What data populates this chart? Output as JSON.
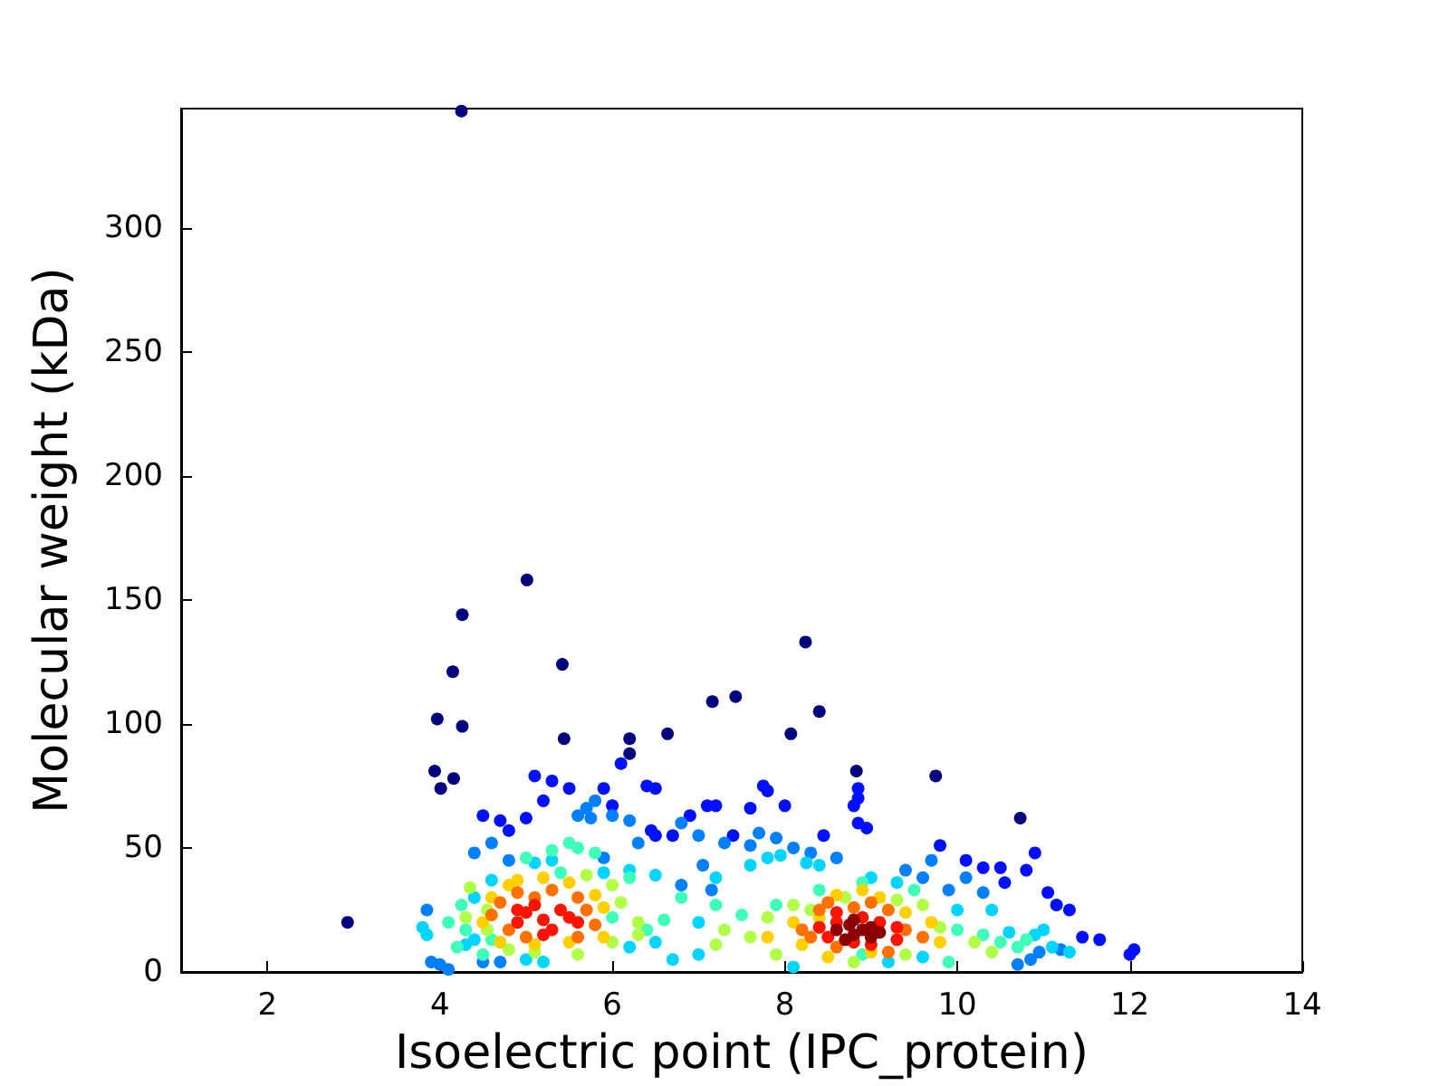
{
  "chart_data": {
    "type": "scatter",
    "xlabel": "Isoelectric point (IPC_protein)",
    "ylabel": "Molecular weight (kDa)",
    "xlim": [
      1,
      14
    ],
    "xticks": [
      2,
      4,
      6,
      8,
      10,
      12,
      14
    ],
    "ylim": [
      0,
      348
    ],
    "yticks": [
      0,
      50,
      100,
      150,
      200,
      250,
      300
    ],
    "grid": false,
    "marker": "circle",
    "series": [
      {
        "color": "#00007f",
        "x": [
          4.25,
          2.93,
          5.01,
          4.26,
          4.15,
          3.97,
          4.26,
          5.42,
          3.94,
          4.16,
          4.01,
          5.44,
          6.2,
          6.2,
          8.24,
          7.16,
          7.43,
          8.4,
          6.64,
          8.07,
          9.75,
          10.73,
          8.83
        ],
        "values": [
          347,
          20,
          158,
          144,
          121,
          102,
          99,
          124,
          81,
          78,
          74,
          94,
          94,
          88,
          133,
          109,
          111,
          105,
          96,
          96,
          79,
          62,
          81
        ]
      },
      {
        "color": "#0010ff",
        "x": [
          4.5,
          4.7,
          5.0,
          5.2,
          5.3,
          5.5,
          4.8,
          5.1,
          5.9,
          6.0,
          6.4,
          6.5,
          6.1,
          6.9,
          6.45,
          7.1,
          7.2,
          7.6,
          7.75,
          7.8,
          8.0,
          8.45,
          8.8,
          8.85,
          8.95,
          9.8,
          10.1,
          10.3,
          10.5,
          10.55,
          10.8,
          11.05,
          11.15,
          11.3,
          11.45,
          12.05,
          12.0,
          11.65,
          10.9,
          7.4,
          6.5,
          6.7,
          8.85,
          8.85
        ],
        "values": [
          63,
          61,
          62,
          69,
          77,
          74,
          57,
          79,
          74,
          67,
          75,
          74,
          84,
          63,
          57,
          67,
          67,
          66,
          75,
          73,
          67,
          55,
          67,
          60,
          58,
          51,
          45,
          42,
          42,
          36,
          41,
          32,
          27,
          25,
          14,
          9,
          7,
          13,
          48,
          55,
          55,
          55,
          74,
          70
        ]
      },
      {
        "color": "#0080ff",
        "x": [
          4.6,
          4.4,
          4.8,
          5.6,
          5.7,
          5.8,
          5.75,
          6.0,
          6.2,
          5.9,
          6.3,
          6.8,
          7.0,
          7.3,
          7.6,
          7.7,
          7.9,
          8.1,
          8.3,
          8.6,
          9.7,
          9.9,
          10.3,
          10.1,
          3.85,
          3.9,
          4.0,
          4.1,
          4.5,
          4.7,
          7.05,
          7.15,
          6.8,
          9.4,
          9.6,
          10.95,
          11.2,
          10.7,
          10.85
        ],
        "values": [
          52,
          48,
          45,
          63,
          66,
          69,
          62,
          63,
          61,
          46,
          52,
          60,
          55,
          52,
          51,
          56,
          54,
          50,
          48,
          46,
          45,
          33,
          32,
          38,
          25,
          4,
          3,
          1,
          4,
          4,
          43,
          33,
          35,
          41,
          38,
          8,
          9,
          3,
          5
        ]
      },
      {
        "color": "#00d4ff",
        "x": [
          3.85,
          3.8,
          4.4,
          4.6,
          5.1,
          5.3,
          6.2,
          5.9,
          7.6,
          7.8,
          7.95,
          8.25,
          8.4,
          6.5,
          7.2,
          9.0,
          9.3,
          10.0,
          10.4,
          10.6,
          10.9,
          11.1,
          11.3,
          7.0,
          6.5,
          6.2,
          5.2,
          5.0,
          4.3,
          4.4,
          7.0,
          9.2,
          8.1,
          9.6,
          6.7,
          11.0
        ],
        "values": [
          15,
          18,
          30,
          37,
          44,
          45,
          41,
          40,
          43,
          46,
          47,
          44,
          43,
          39,
          38,
          38,
          36,
          25,
          25,
          16,
          15,
          10,
          8,
          20,
          12,
          10,
          4,
          5,
          11,
          13,
          7,
          4,
          2,
          6,
          5,
          17
        ]
      },
      {
        "color": "#40ffb8",
        "x": [
          4.25,
          4.1,
          4.3,
          5.0,
          5.3,
          5.5,
          5.6,
          5.8,
          6.2,
          6.8,
          6.6,
          7.2,
          7.5,
          7.9,
          8.4,
          8.9,
          9.5,
          10.0,
          10.3,
          10.5,
          10.7,
          10.8,
          5.4,
          4.6,
          4.2,
          6.0,
          8.9,
          9.9,
          4.5,
          6.4
        ],
        "values": [
          27,
          20,
          17,
          46,
          49,
          52,
          50,
          48,
          38,
          30,
          21,
          27,
          23,
          27,
          33,
          36,
          33,
          17,
          15,
          12,
          10,
          13,
          40,
          13,
          10,
          22,
          7,
          4,
          7,
          17
        ]
      },
      {
        "color": "#b0ff48",
        "x": [
          4.3,
          4.55,
          4.35,
          4.8,
          5.1,
          5.7,
          6.0,
          6.1,
          6.3,
          6.0,
          7.3,
          7.6,
          7.8,
          8.1,
          8.3,
          8.7,
          9.3,
          9.6,
          9.8,
          10.2,
          10.4,
          7.9,
          8.8,
          9.4,
          5.6,
          4.55,
          6.3,
          7.2
        ],
        "values": [
          22,
          25,
          34,
          9,
          8,
          39,
          35,
          28,
          20,
          12,
          17,
          14,
          22,
          27,
          25,
          30,
          29,
          27,
          18,
          12,
          8,
          7,
          4,
          7,
          7,
          17,
          15,
          11
        ]
      },
      {
        "color": "#ffd000",
        "x": [
          4.5,
          4.6,
          4.8,
          4.9,
          5.2,
          5.5,
          5.8,
          5.9,
          5.5,
          5.1,
          4.7,
          7.8,
          8.2,
          8.6,
          8.9,
          9.1,
          9.4,
          9.7,
          9.8,
          8.4,
          8.1,
          9.0,
          8.5,
          5.9
        ],
        "values": [
          20,
          30,
          35,
          37,
          38,
          36,
          31,
          26,
          12,
          11,
          12,
          14,
          11,
          31,
          33,
          30,
          24,
          20,
          12,
          22,
          20,
          8,
          6,
          14
        ]
      },
      {
        "color": "#ff7000",
        "x": [
          4.6,
          4.7,
          4.9,
          5.1,
          5.3,
          5.6,
          5.7,
          5.8,
          5.6,
          5.0,
          4.8,
          8.2,
          8.4,
          8.5,
          8.8,
          9.2,
          9.4,
          9.6,
          9.2,
          8.6,
          8.3,
          9.0
        ],
        "values": [
          23,
          28,
          32,
          30,
          33,
          30,
          25,
          19,
          14,
          14,
          17,
          17,
          25,
          28,
          26,
          25,
          17,
          14,
          8,
          10,
          14,
          28
        ]
      },
      {
        "color": "#ff1400",
        "x": [
          4.9,
          5.0,
          5.1,
          5.2,
          5.3,
          5.4,
          5.5,
          5.6,
          5.2,
          4.9,
          8.4,
          8.5,
          8.6,
          8.9,
          9.1,
          9.3,
          9.0,
          8.8,
          9.3,
          8.6
        ],
        "values": [
          20,
          24,
          27,
          21,
          17,
          25,
          22,
          20,
          15,
          25,
          18,
          14,
          20,
          22,
          20,
          13,
          11,
          12,
          18,
          24
        ]
      },
      {
        "color": "#8b0000",
        "x": [
          8.6,
          8.75,
          8.8,
          8.9,
          9.0,
          9.1,
          8.7,
          9.0,
          8.8
        ],
        "values": [
          17,
          19,
          15,
          17,
          14,
          16,
          13,
          18,
          21
        ]
      }
    ]
  }
}
